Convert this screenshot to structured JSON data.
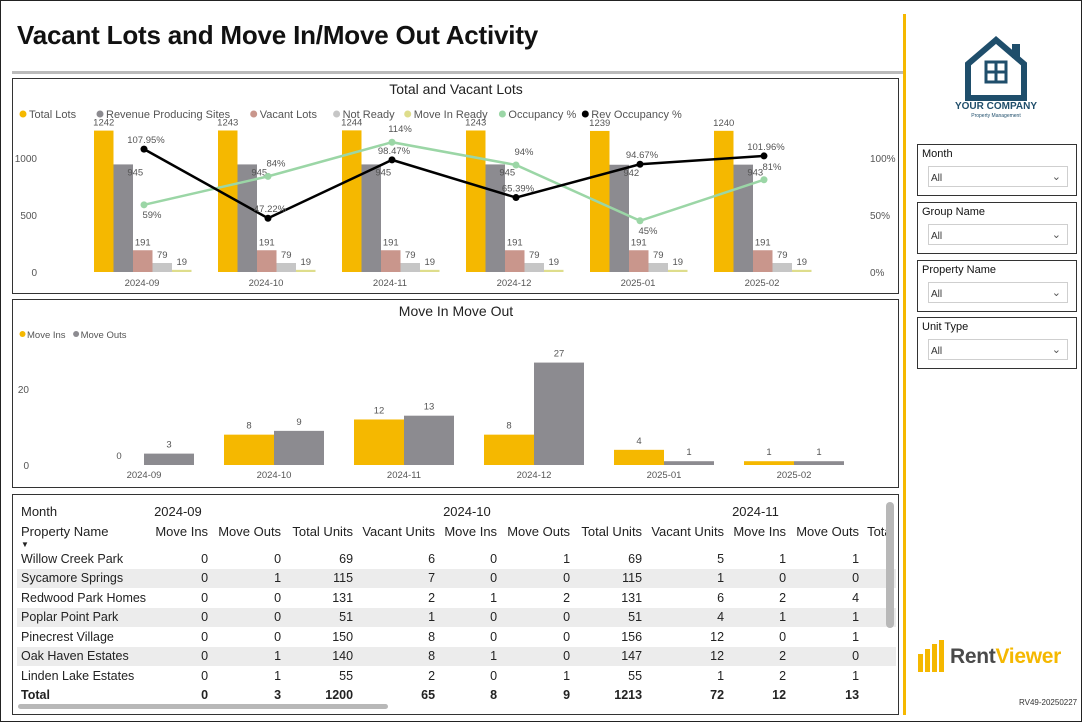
{
  "header": {
    "title": "Vacant Lots and Move In/Move Out Activity"
  },
  "company": {
    "name": "YOUR COMPANY",
    "tagline": "Property Management"
  },
  "brand": {
    "part1": "Rent",
    "part2": "Viewer",
    "version": "RV49-20250227"
  },
  "colors": {
    "accent": "#f5b800",
    "gray": "#8c8b90",
    "vacant": "#c9968c",
    "notready": "#c6c6c6",
    "moveinready": "#dedd8c",
    "occ": "#9bd6a6",
    "revocc": "#000000"
  },
  "slicers": [
    {
      "label": "Month",
      "value": "All"
    },
    {
      "label": "Group Name",
      "value": "All"
    },
    {
      "label": "Property Name",
      "value": "All"
    },
    {
      "label": "Unit Type",
      "value": "All"
    }
  ],
  "chart_data": [
    {
      "type": "bar",
      "title": "Total and Vacant Lots",
      "categories": [
        "2024-09",
        "2024-10",
        "2024-11",
        "2024-12",
        "2025-01",
        "2025-02"
      ],
      "legend_position": "top-left",
      "y_ticks": [
        "0",
        "500",
        "1000"
      ],
      "y2_ticks": [
        "0%",
        "50%",
        "100%"
      ],
      "ylim": [
        0,
        1300
      ],
      "y2lim": [
        0,
        1.3
      ],
      "series": [
        {
          "name": "Total Lots",
          "values": [
            1242,
            1243,
            1244,
            1243,
            1239,
            1240
          ],
          "labels": [
            "1242",
            "1243",
            "1244",
            "1243",
            "1239",
            "1240"
          ]
        },
        {
          "name": "Revenue Producing Sites",
          "values": [
            945,
            945,
            945,
            945,
            942,
            943
          ],
          "labels": [
            "945",
            "945",
            "945",
            "945",
            "942",
            "943"
          ]
        },
        {
          "name": "Vacant Lots",
          "values": [
            191,
            191,
            191,
            191,
            191,
            191
          ],
          "labels": [
            "191",
            "191",
            "191",
            "191",
            "191",
            "191"
          ]
        },
        {
          "name": "Not Ready",
          "values": [
            79,
            79,
            79,
            79,
            79,
            79
          ],
          "labels": [
            "79",
            "79",
            "79",
            "79",
            "79",
            "79"
          ]
        },
        {
          "name": "Move In Ready",
          "values": [
            19,
            19,
            19,
            19,
            19,
            19
          ],
          "labels": [
            "19",
            "19",
            "19",
            "19",
            "19",
            "19"
          ]
        }
      ],
      "lines": [
        {
          "name": "Occupancy %",
          "values": [
            0.59,
            0.84,
            1.14,
            0.94,
            0.45,
            0.81
          ],
          "labels": [
            "59%",
            "84%",
            "114%",
            "94%",
            "45%",
            "81%"
          ]
        },
        {
          "name": "Rev Occupancy %",
          "values": [
            1.0795,
            0.4722,
            0.9847,
            0.6539,
            0.9467,
            1.0196
          ],
          "labels": [
            "107.95%",
            "47.22%",
            "98.47%",
            "65.39%",
            "94.67%",
            "101.96%"
          ]
        }
      ]
    },
    {
      "type": "bar",
      "title": "Move In Move Out",
      "categories": [
        "2024-09",
        "2024-10",
        "2024-11",
        "2024-12",
        "2025-01",
        "2025-02"
      ],
      "legend_position": "top-left",
      "y_ticks": [
        "0",
        "20"
      ],
      "ylim": [
        0,
        29
      ],
      "series": [
        {
          "name": "Move Ins",
          "values": [
            0,
            8,
            12,
            8,
            4,
            1
          ],
          "labels": [
            "0",
            "8",
            "12",
            "8",
            "4",
            "1"
          ]
        },
        {
          "name": "Move Outs",
          "values": [
            3,
            9,
            13,
            27,
            1,
            1
          ],
          "labels": [
            "3",
            "9",
            "13",
            "27",
            "1",
            "1"
          ]
        }
      ]
    },
    {
      "type": "table",
      "row_header": "Month",
      "col_header": "Property Name",
      "months": [
        "2024-09",
        "2024-10",
        "2024-11"
      ],
      "measures": [
        "Move Ins",
        "Move Outs",
        "Total Units",
        "Vacant Units",
        "Move Ins",
        "Move Outs",
        "Total Units",
        "Vacant Units",
        "Move Ins",
        "Move Outs",
        "Tota"
      ],
      "rows": [
        {
          "name": "Willow Creek Park",
          "cells": [
            "0",
            "0",
            "69",
            "6",
            "0",
            "1",
            "69",
            "5",
            "1",
            "1"
          ]
        },
        {
          "name": "Sycamore Springs",
          "cells": [
            "0",
            "1",
            "115",
            "7",
            "0",
            "0",
            "115",
            "1",
            "0",
            "0"
          ]
        },
        {
          "name": "Redwood Park Homes",
          "cells": [
            "0",
            "0",
            "131",
            "2",
            "1",
            "2",
            "131",
            "6",
            "2",
            "4"
          ]
        },
        {
          "name": "Poplar Point Park",
          "cells": [
            "0",
            "0",
            "51",
            "1",
            "0",
            "0",
            "51",
            "4",
            "1",
            "1"
          ]
        },
        {
          "name": "Pinecrest Village",
          "cells": [
            "0",
            "0",
            "150",
            "8",
            "0",
            "0",
            "156",
            "12",
            "0",
            "1"
          ]
        },
        {
          "name": "Oak Haven Estates",
          "cells": [
            "0",
            "1",
            "140",
            "8",
            "1",
            "0",
            "147",
            "12",
            "2",
            "0"
          ]
        },
        {
          "name": "Linden Lake Estates",
          "cells": [
            "0",
            "1",
            "55",
            "2",
            "0",
            "1",
            "55",
            "1",
            "2",
            "1"
          ]
        }
      ],
      "total": {
        "name": "Total",
        "cells": [
          "0",
          "3",
          "1200",
          "65",
          "8",
          "9",
          "1213",
          "72",
          "12",
          "13"
        ]
      }
    }
  ]
}
